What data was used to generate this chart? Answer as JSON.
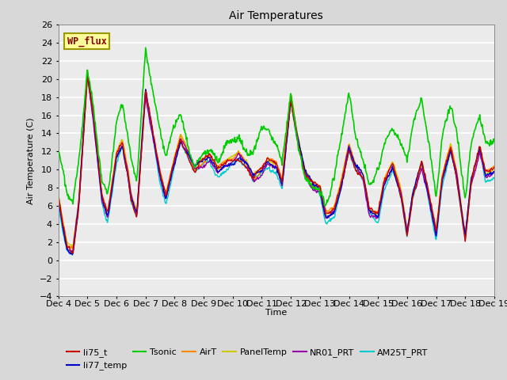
{
  "title": "Air Temperatures",
  "xlabel": "Time",
  "ylabel": "Air Temperature (C)",
  "ylim": [
    -4,
    26
  ],
  "yticks": [
    -4,
    -2,
    0,
    2,
    4,
    6,
    8,
    10,
    12,
    14,
    16,
    18,
    20,
    22,
    24,
    26
  ],
  "xtick_labels": [
    "Dec 4",
    "Dec 5",
    "Dec 6",
    "Dec 7",
    "Dec 8",
    "Dec 9",
    "Dec 10",
    "Dec 11",
    "Dec 12",
    "Dec 13",
    "Dec 14",
    "Dec 15",
    "Dec 16",
    "Dec 17",
    "Dec 18",
    "Dec 19"
  ],
  "series": {
    "li75_t": {
      "color": "#cc0000",
      "lw": 1.0
    },
    "li77_temp": {
      "color": "#0000cc",
      "lw": 1.0
    },
    "Tsonic": {
      "color": "#00cc00",
      "lw": 1.2
    },
    "AirT": {
      "color": "#ff8800",
      "lw": 1.0
    },
    "PanelTemp": {
      "color": "#cccc00",
      "lw": 1.0
    },
    "NR01_PRT": {
      "color": "#9900aa",
      "lw": 1.0
    },
    "AM25T_PRT": {
      "color": "#00cccc",
      "lw": 1.0
    }
  },
  "legend_box": {
    "text": "WP_flux",
    "text_color": "#8b0000",
    "bg_color": "#ffff99",
    "edge_color": "#999900",
    "fontsize": 8.5
  },
  "bg_color": "#d8d8d8",
  "plot_bg": "#ebebeb",
  "grid_color": "white",
  "n_points": 720
}
